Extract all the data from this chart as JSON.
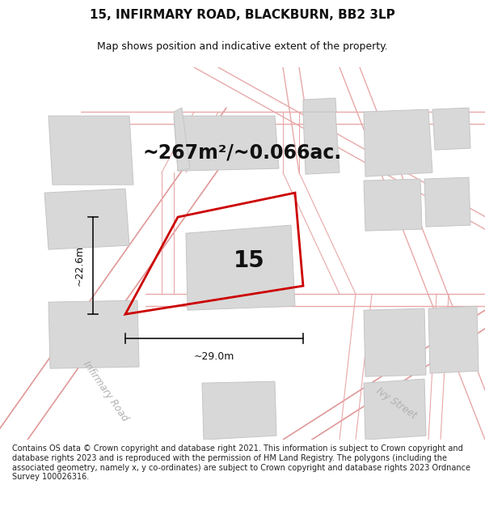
{
  "title": "15, INFIRMARY ROAD, BLACKBURN, BB2 3LP",
  "subtitle": "Map shows position and indicative extent of the property.",
  "area_text": "~267m²/~0.066ac.",
  "property_number": "15",
  "dim_width": "~29.0m",
  "dim_height": "~22.6m",
  "street_label_1": "Infirmary Road",
  "street_label_2": "Ivy Street",
  "footer": "Contains OS data © Crown copyright and database right 2021. This information is subject to Crown copyright and database rights 2023 and is reproduced with the permission of HM Land Registry. The polygons (including the associated geometry, namely x, y co-ordinates) are subject to Crown copyright and database rights 2023 Ordnance Survey 100026316.",
  "map_bg": "#eeeded",
  "building_fill": "#d8d8d8",
  "building_edge": "#c5c5c5",
  "road_color": "#e8a8a8",
  "road_lw": 1.0,
  "property_color": "#cc0000",
  "property_lw": 2.0,
  "dim_color": "#111111",
  "text_color": "#111111",
  "title_fontsize": 11,
  "subtitle_fontsize": 9,
  "area_fontsize": 17,
  "number_fontsize": 20,
  "footer_fontsize": 7.0,
  "street_fontsize": 8.5
}
